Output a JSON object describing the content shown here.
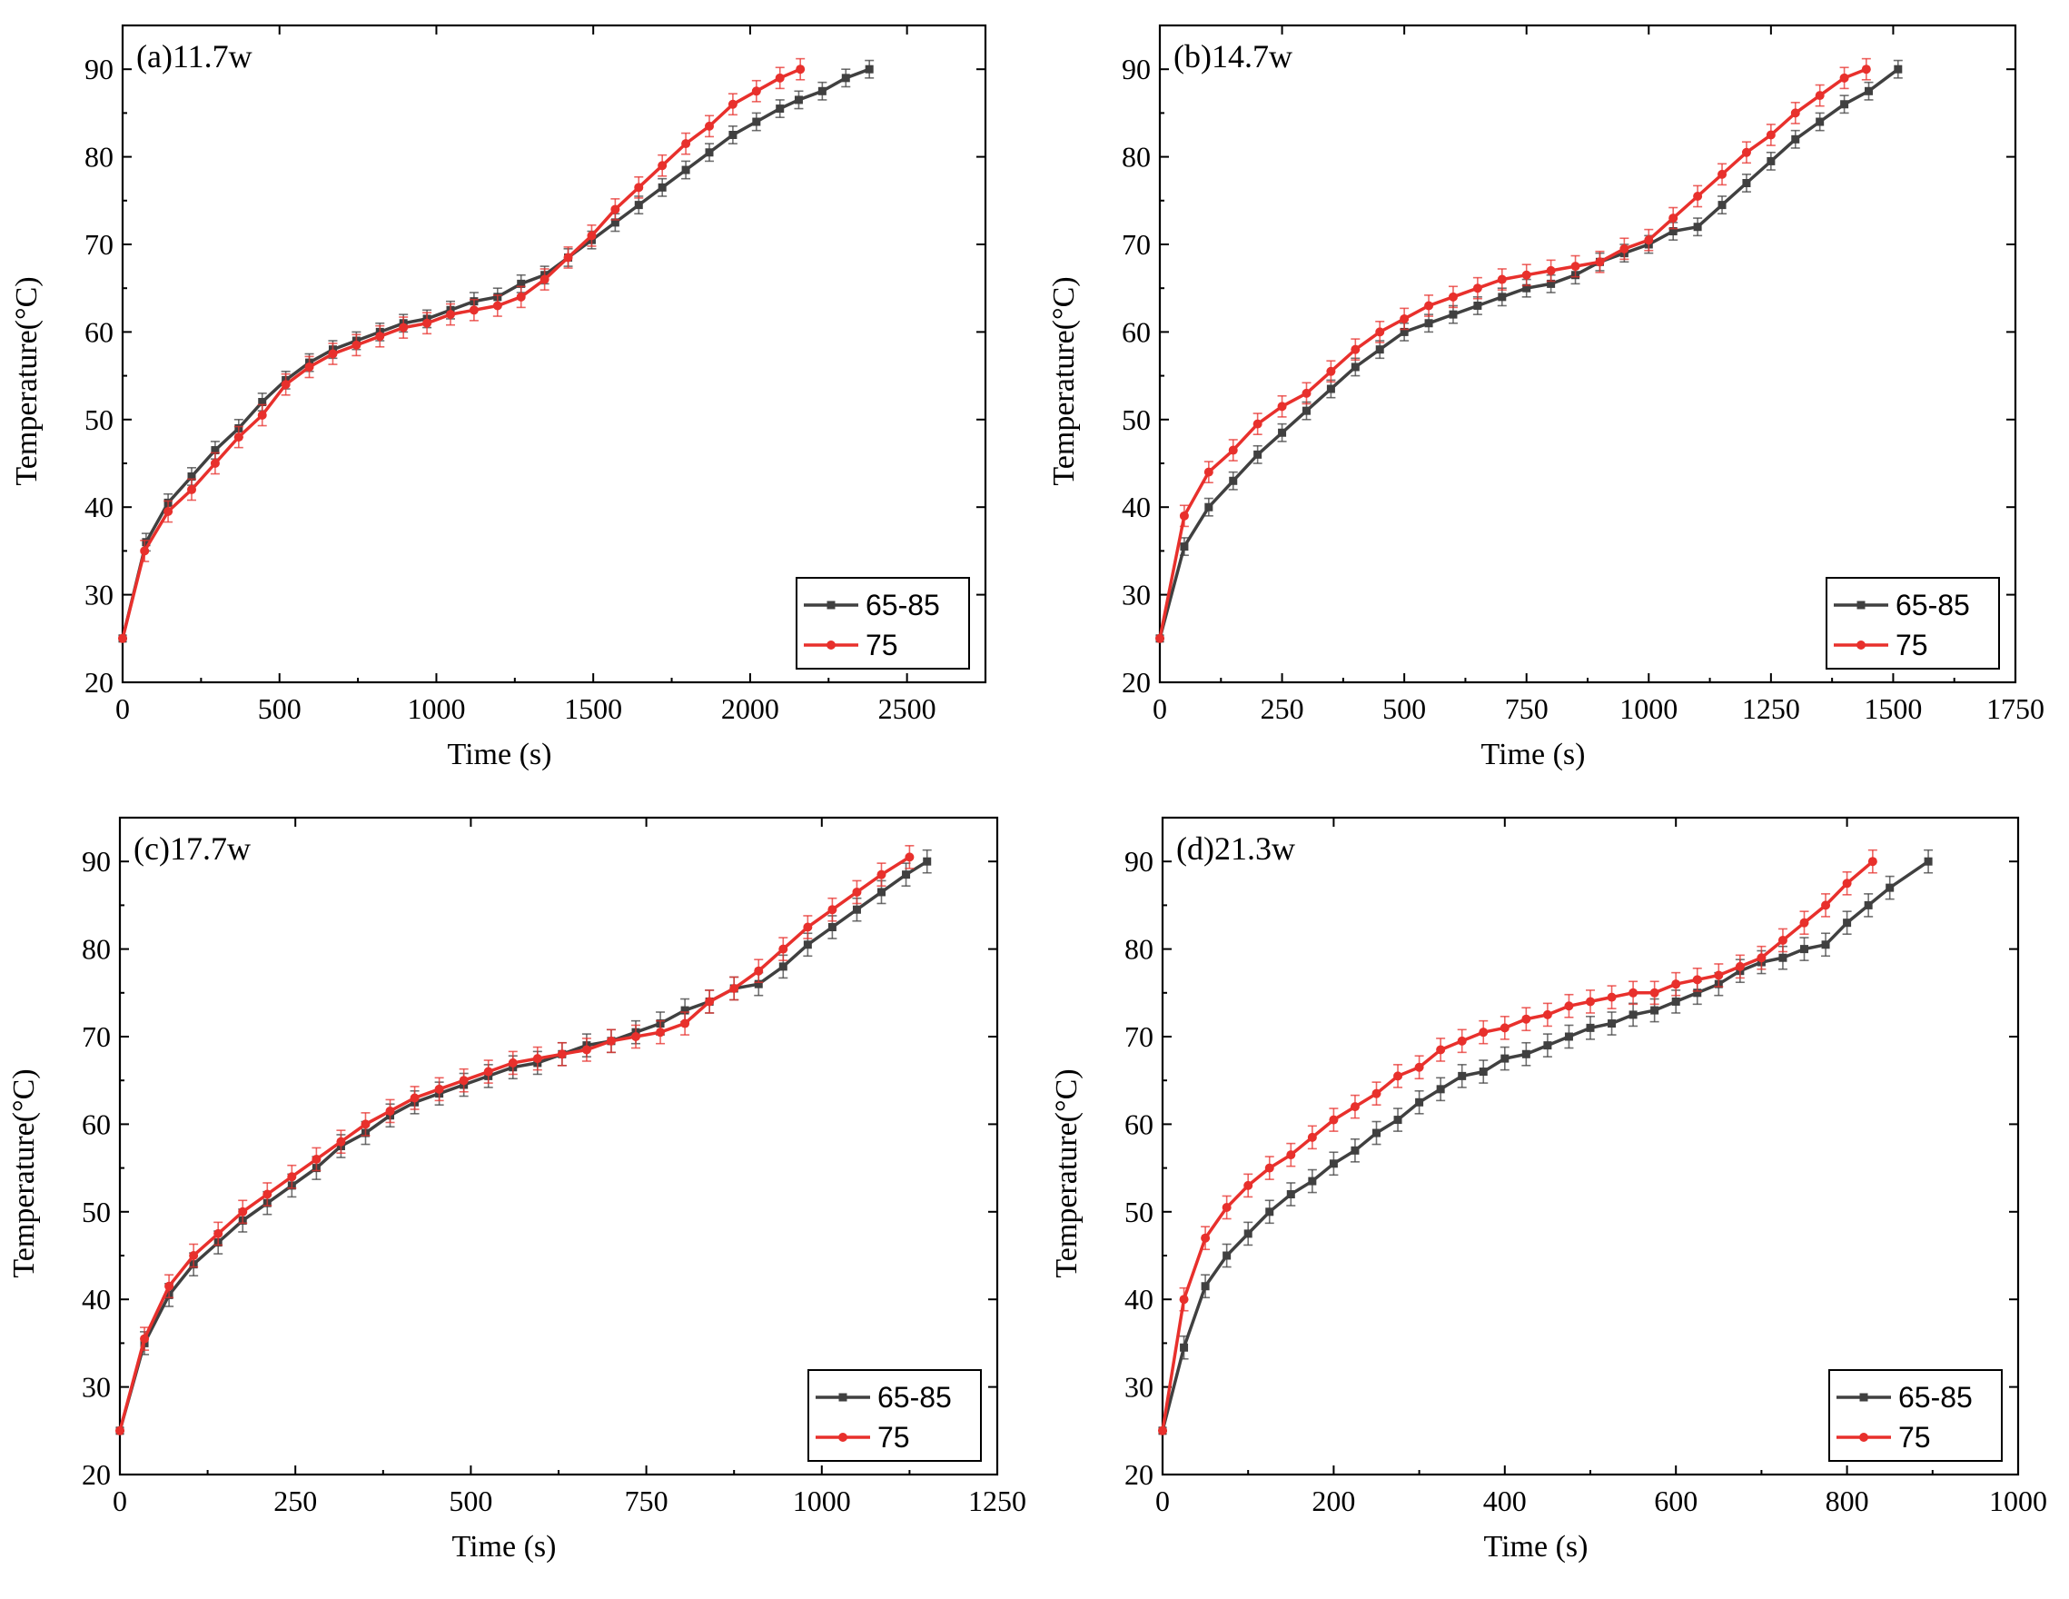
{
  "colors": {
    "series_65_85": "#404040",
    "series_75": "#e8302c"
  },
  "chart_data": [
    {
      "type": "line",
      "title": "(a)11.7w",
      "xlabel": "Time (s)",
      "ylabel": "Temperature(°C)",
      "xlim": [
        0,
        2750
      ],
      "ylim": [
        20,
        95
      ],
      "xticks": [
        0,
        500,
        1000,
        1500,
        2000,
        2500
      ],
      "yticks": [
        20,
        30,
        40,
        50,
        60,
        70,
        80,
        90
      ],
      "legend": "bottom-right",
      "series": [
        {
          "name": "65-85",
          "color": "#404040",
          "marker": "square",
          "x": [
            0,
            75,
            145,
            220,
            295,
            370,
            445,
            520,
            595,
            670,
            745,
            820,
            895,
            970,
            1045,
            1120,
            1195,
            1270,
            1345,
            1420,
            1495,
            1570,
            1645,
            1720,
            1795,
            1870,
            1945,
            2020,
            2095,
            2155,
            2230,
            2305,
            2380
          ],
          "y": [
            25,
            36,
            40.5,
            43.5,
            46.5,
            49,
            52,
            54.5,
            56.5,
            58,
            59,
            60,
            61,
            61.5,
            62.5,
            63.5,
            64,
            65.5,
            66.5,
            68.5,
            70.5,
            72.5,
            74.5,
            76.5,
            78.5,
            80.5,
            82.5,
            84,
            85.5,
            86.5,
            87.5,
            89,
            90
          ],
          "err": 1.0
        },
        {
          "name": "75",
          "color": "#e8302c",
          "marker": "circle",
          "x": [
            0,
            70,
            145,
            220,
            295,
            370,
            445,
            520,
            595,
            670,
            745,
            820,
            895,
            970,
            1045,
            1120,
            1195,
            1270,
            1345,
            1420,
            1495,
            1570,
            1645,
            1720,
            1795,
            1870,
            1945,
            2020,
            2095,
            2160
          ],
          "y": [
            25,
            35,
            39.5,
            42,
            45,
            48,
            50.5,
            54,
            56,
            57.5,
            58.5,
            59.5,
            60.5,
            61,
            62,
            62.5,
            63,
            64,
            66,
            68.5,
            71,
            74,
            76.5,
            79,
            81.5,
            83.5,
            86,
            87.5,
            89,
            90
          ],
          "err": 1.2
        }
      ]
    },
    {
      "type": "line",
      "title": "(b)14.7w",
      "xlabel": "Time (s)",
      "ylabel": "Temperature(°C)",
      "xlim": [
        0,
        1750
      ],
      "ylim": [
        20,
        95
      ],
      "xticks": [
        0,
        250,
        500,
        750,
        1000,
        1250,
        1500,
        1750
      ],
      "yticks": [
        20,
        30,
        40,
        50,
        60,
        70,
        80,
        90
      ],
      "legend": "bottom-right",
      "series": [
        {
          "name": "65-85",
          "color": "#404040",
          "marker": "square",
          "x": [
            0,
            50,
            100,
            150,
            200,
            250,
            300,
            350,
            400,
            450,
            500,
            550,
            600,
            650,
            700,
            750,
            800,
            850,
            900,
            950,
            1000,
            1050,
            1100,
            1150,
            1200,
            1250,
            1300,
            1350,
            1400,
            1450,
            1510
          ],
          "y": [
            25,
            35.5,
            40,
            43,
            46,
            48.5,
            51,
            53.5,
            56,
            58,
            60,
            61,
            62,
            63,
            64,
            65,
            65.5,
            66.5,
            68,
            69,
            70,
            71.5,
            72,
            74.5,
            77,
            79.5,
            82,
            84,
            86,
            87.5,
            90
          ],
          "err": 1.0
        },
        {
          "name": "75",
          "color": "#e8302c",
          "marker": "circle",
          "x": [
            0,
            50,
            100,
            150,
            200,
            250,
            300,
            350,
            400,
            450,
            500,
            550,
            600,
            650,
            700,
            750,
            800,
            850,
            900,
            950,
            1000,
            1050,
            1100,
            1150,
            1200,
            1250,
            1300,
            1350,
            1400,
            1445
          ],
          "y": [
            25,
            39,
            44,
            46.5,
            49.5,
            51.5,
            53,
            55.5,
            58,
            60,
            61.5,
            63,
            64,
            65,
            66,
            66.5,
            67,
            67.5,
            68,
            69.5,
            70.5,
            73,
            75.5,
            78,
            80.5,
            82.5,
            85,
            87,
            89,
            90
          ],
          "err": 1.2
        }
      ]
    },
    {
      "type": "line",
      "title": "(c)17.7w",
      "xlabel": "Time (s)",
      "ylabel": "Temperature(°C)",
      "xlim": [
        0,
        1250
      ],
      "ylim": [
        20,
        95
      ],
      "xticks": [
        0,
        250,
        500,
        750,
        1000,
        1250
      ],
      "yticks": [
        20,
        30,
        40,
        50,
        60,
        70,
        80,
        90
      ],
      "legend": "bottom-right",
      "series": [
        {
          "name": "65-85",
          "color": "#404040",
          "marker": "square",
          "x": [
            0,
            35,
            70,
            105,
            140,
            175,
            210,
            245,
            280,
            315,
            350,
            385,
            420,
            455,
            490,
            525,
            560,
            595,
            630,
            665,
            700,
            735,
            770,
            805,
            840,
            875,
            910,
            945,
            980,
            1015,
            1050,
            1085,
            1120,
            1150
          ],
          "y": [
            25,
            35,
            40.5,
            44,
            46.5,
            49,
            51,
            53,
            55,
            57.5,
            59,
            61,
            62.5,
            63.5,
            64.5,
            65.5,
            66.5,
            67,
            68,
            69,
            69.5,
            70.5,
            71.5,
            73,
            74,
            75.5,
            76,
            78,
            80.5,
            82.5,
            84.5,
            86.5,
            88.5,
            90
          ],
          "err": 1.3
        },
        {
          "name": "75",
          "color": "#e8302c",
          "marker": "circle",
          "x": [
            0,
            35,
            70,
            105,
            140,
            175,
            210,
            245,
            280,
            315,
            350,
            385,
            420,
            455,
            490,
            525,
            560,
            595,
            630,
            665,
            700,
            735,
            770,
            805,
            840,
            875,
            910,
            945,
            980,
            1015,
            1050,
            1085,
            1125
          ],
          "y": [
            25,
            35.5,
            41.5,
            45,
            47.5,
            50,
            52,
            54,
            56,
            58,
            60,
            61.5,
            63,
            64,
            65,
            66,
            67,
            67.5,
            68,
            68.5,
            69.5,
            70,
            70.5,
            71.5,
            74,
            75.5,
            77.5,
            80,
            82.5,
            84.5,
            86.5,
            88.5,
            90.5
          ],
          "err": 1.3
        }
      ]
    },
    {
      "type": "line",
      "title": "(d)21.3w",
      "xlabel": "Time (s)",
      "ylabel": "Temperature(°C)",
      "xlim": [
        0,
        1000
      ],
      "ylim": [
        20,
        95
      ],
      "xticks": [
        0,
        200,
        400,
        600,
        800,
        1000
      ],
      "yticks": [
        20,
        30,
        40,
        50,
        60,
        70,
        80,
        90
      ],
      "legend": "bottom-right",
      "series": [
        {
          "name": "65-85",
          "color": "#404040",
          "marker": "square",
          "x": [
            0,
            25,
            50,
            75,
            100,
            125,
            150,
            175,
            200,
            225,
            250,
            275,
            300,
            325,
            350,
            375,
            400,
            425,
            450,
            475,
            500,
            525,
            550,
            575,
            600,
            625,
            650,
            675,
            700,
            725,
            750,
            775,
            800,
            825,
            850,
            895
          ],
          "y": [
            25,
            34.5,
            41.5,
            45,
            47.5,
            50,
            52,
            53.5,
            55.5,
            57,
            59,
            60.5,
            62.5,
            64,
            65.5,
            66,
            67.5,
            68,
            69,
            70,
            71,
            71.5,
            72.5,
            73,
            74,
            75,
            76,
            77.5,
            78.5,
            79,
            80,
            80.5,
            83,
            85,
            87,
            90
          ],
          "err": 1.3
        },
        {
          "name": "75",
          "color": "#e8302c",
          "marker": "circle",
          "x": [
            0,
            25,
            50,
            75,
            100,
            125,
            150,
            175,
            200,
            225,
            250,
            275,
            300,
            325,
            350,
            375,
            400,
            425,
            450,
            475,
            500,
            525,
            550,
            575,
            600,
            625,
            650,
            675,
            700,
            725,
            750,
            775,
            800,
            830
          ],
          "y": [
            25,
            40,
            47,
            50.5,
            53,
            55,
            56.5,
            58.5,
            60.5,
            62,
            63.5,
            65.5,
            66.5,
            68.5,
            69.5,
            70.5,
            71,
            72,
            72.5,
            73.5,
            74,
            74.5,
            75,
            75,
            76,
            76.5,
            77,
            78,
            79,
            81,
            83,
            85,
            87.5,
            90
          ],
          "err": 1.3
        }
      ]
    }
  ]
}
